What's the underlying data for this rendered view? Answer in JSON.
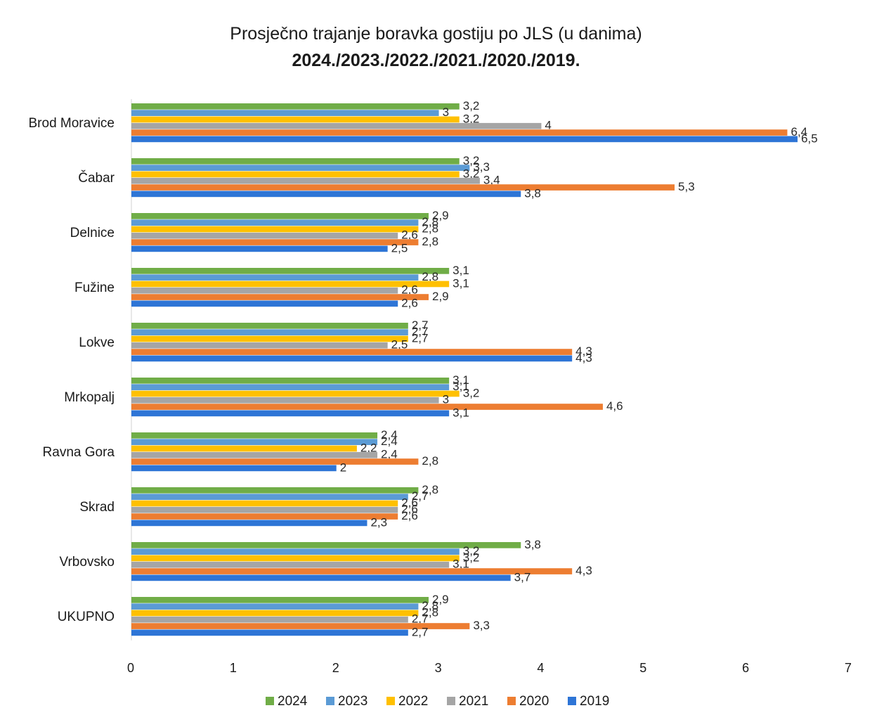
{
  "chart_data": {
    "type": "bar",
    "orientation": "horizontal",
    "title": "Prosječno trajanje boravka gostiju po JLS (u danima)",
    "subtitle": "2024./2023./2022./2021./2020./2019.",
    "categories": [
      "Brod Moravice",
      "Čabar",
      "Delnice",
      "Fužine",
      "Lokve",
      "Mrkopalj",
      "Ravna Gora",
      "Skrad",
      "Vrbovsko",
      "UKUPNO"
    ],
    "series": [
      {
        "name": "2024",
        "color": "#70ad47",
        "values": [
          3.2,
          3.2,
          2.9,
          3.1,
          2.7,
          3.1,
          2.4,
          2.8,
          3.8,
          2.9
        ]
      },
      {
        "name": "2023",
        "color": "#5b9bd5",
        "values": [
          3,
          3.3,
          2.8,
          2.8,
          2.7,
          3.1,
          2.4,
          2.7,
          3.2,
          2.8
        ]
      },
      {
        "name": "2022",
        "color": "#ffc000",
        "values": [
          3.2,
          3.2,
          2.8,
          3.1,
          2.7,
          3.2,
          2.2,
          2.6,
          3.2,
          2.8
        ]
      },
      {
        "name": "2021",
        "color": "#a5a5a5",
        "values": [
          4,
          3.4,
          2.6,
          2.6,
          2.5,
          3,
          2.4,
          2.6,
          3.1,
          2.7
        ]
      },
      {
        "name": "2020",
        "color": "#ed7d31",
        "values": [
          6.4,
          5.3,
          2.8,
          2.9,
          4.3,
          4.6,
          2.8,
          2.6,
          4.3,
          3.3
        ]
      },
      {
        "name": "2019",
        "color": "#2e75d6",
        "values": [
          6.5,
          3.8,
          2.5,
          2.6,
          4.3,
          3.1,
          2,
          2.3,
          3.7,
          2.7
        ]
      }
    ],
    "xlim": [
      0,
      7
    ],
    "xticks": [
      0,
      1,
      2,
      3,
      4,
      5,
      6,
      7
    ],
    "grid": false,
    "legend_position": "bottom",
    "data_labels": true
  }
}
